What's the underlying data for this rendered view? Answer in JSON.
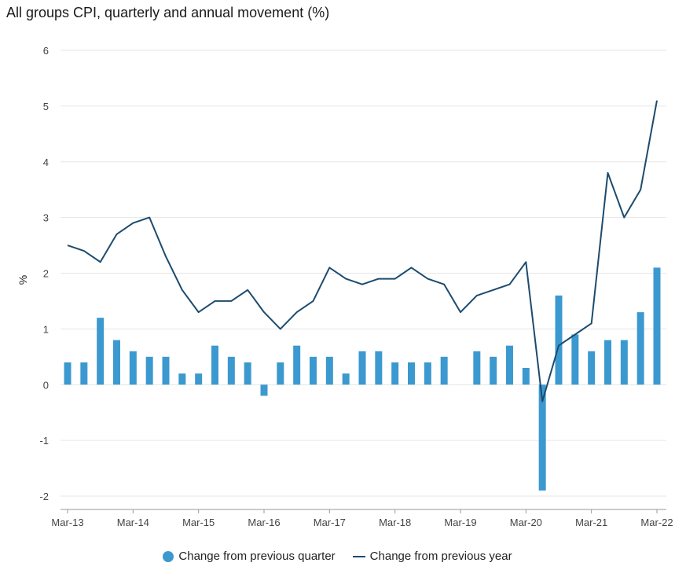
{
  "chart_data": {
    "type": "bar+line",
    "title": "All groups CPI, quarterly and annual movement (%)",
    "ylabel": "%",
    "xlabel": "",
    "ylim": [
      -2,
      6
    ],
    "yticks": [
      -2,
      -1,
      0,
      1,
      2,
      3,
      4,
      5,
      6
    ],
    "xtick_labels": [
      "Mar-13",
      "Mar-14",
      "Mar-15",
      "Mar-16",
      "Mar-17",
      "Mar-18",
      "Mar-19",
      "Mar-20",
      "Mar-21",
      "Mar-22"
    ],
    "categories": [
      "Mar-13",
      "Jun-13",
      "Sep-13",
      "Dec-13",
      "Mar-14",
      "Jun-14",
      "Sep-14",
      "Dec-14",
      "Mar-15",
      "Jun-15",
      "Sep-15",
      "Dec-15",
      "Mar-16",
      "Jun-16",
      "Sep-16",
      "Dec-16",
      "Mar-17",
      "Jun-17",
      "Sep-17",
      "Dec-17",
      "Mar-18",
      "Jun-18",
      "Sep-18",
      "Dec-18",
      "Mar-19",
      "Jun-19",
      "Sep-19",
      "Dec-19",
      "Mar-20",
      "Jun-20",
      "Sep-20",
      "Dec-20",
      "Mar-21",
      "Jun-21",
      "Sep-21",
      "Dec-21",
      "Mar-22"
    ],
    "series": [
      {
        "name": "Change from previous quarter",
        "type": "bar",
        "color": "#3c99d0",
        "values": [
          0.4,
          0.4,
          1.2,
          0.8,
          0.6,
          0.5,
          0.5,
          0.2,
          0.2,
          0.7,
          0.5,
          0.4,
          -0.2,
          0.4,
          0.7,
          0.5,
          0.5,
          0.2,
          0.6,
          0.6,
          0.4,
          0.4,
          0.4,
          0.5,
          0.0,
          0.6,
          0.5,
          0.7,
          0.3,
          -1.9,
          1.6,
          0.9,
          0.6,
          0.8,
          0.8,
          1.3,
          2.1
        ]
      },
      {
        "name": "Change from previous year",
        "type": "line",
        "color": "#1c4b6e",
        "values": [
          2.5,
          2.4,
          2.2,
          2.7,
          2.9,
          3.0,
          2.3,
          1.7,
          1.3,
          1.5,
          1.5,
          1.7,
          1.3,
          1.0,
          1.3,
          1.5,
          2.1,
          1.9,
          1.8,
          1.9,
          1.9,
          2.1,
          1.9,
          1.8,
          1.3,
          1.6,
          1.7,
          1.8,
          2.2,
          -0.3,
          0.7,
          0.9,
          1.1,
          3.8,
          3.0,
          3.5,
          5.1
        ]
      }
    ],
    "legend": "bottom-center"
  }
}
